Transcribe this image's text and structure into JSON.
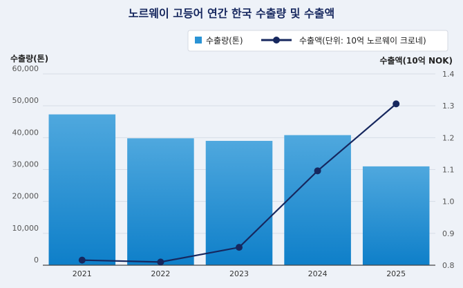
{
  "chart_data": {
    "type": "bar",
    "title": "노르웨이 고등어 연간 한국 수출량 및 수출액",
    "categories": [
      "2021",
      "2022",
      "2023",
      "2024",
      "2025"
    ],
    "series": [
      {
        "name": "수출량(톤)",
        "type": "bar",
        "axis": "left",
        "values": [
          47300,
          39800,
          39000,
          40800,
          31000
        ]
      },
      {
        "name": "수출액(단위: 10억 노르웨이 크로네)",
        "type": "line",
        "axis": "right",
        "values": [
          0.816,
          0.81,
          0.856,
          1.096,
          1.306
        ]
      }
    ],
    "ylabel_left": "수출량(톤)",
    "ylabel_right": "수출액(10억 NOK)",
    "ylim_left": [
      0,
      60000
    ],
    "ylim_right": [
      0.8,
      1.4
    ],
    "yticks_left": [
      "0",
      "10,000",
      "20,000",
      "30,000",
      "40,000",
      "50,000",
      "60,000"
    ],
    "yticks_right": [
      "0.8",
      "0.9",
      "1.0",
      "1.1",
      "1.2",
      "1.3",
      "1.4"
    ],
    "grid": true,
    "legend": "top-right",
    "colors": {
      "bar_top": "#4fa8de",
      "bar_bottom": "#0e7fc9",
      "line": "#16275e",
      "title": "#16275e",
      "text": "#222222",
      "tick": "#555555"
    }
  }
}
